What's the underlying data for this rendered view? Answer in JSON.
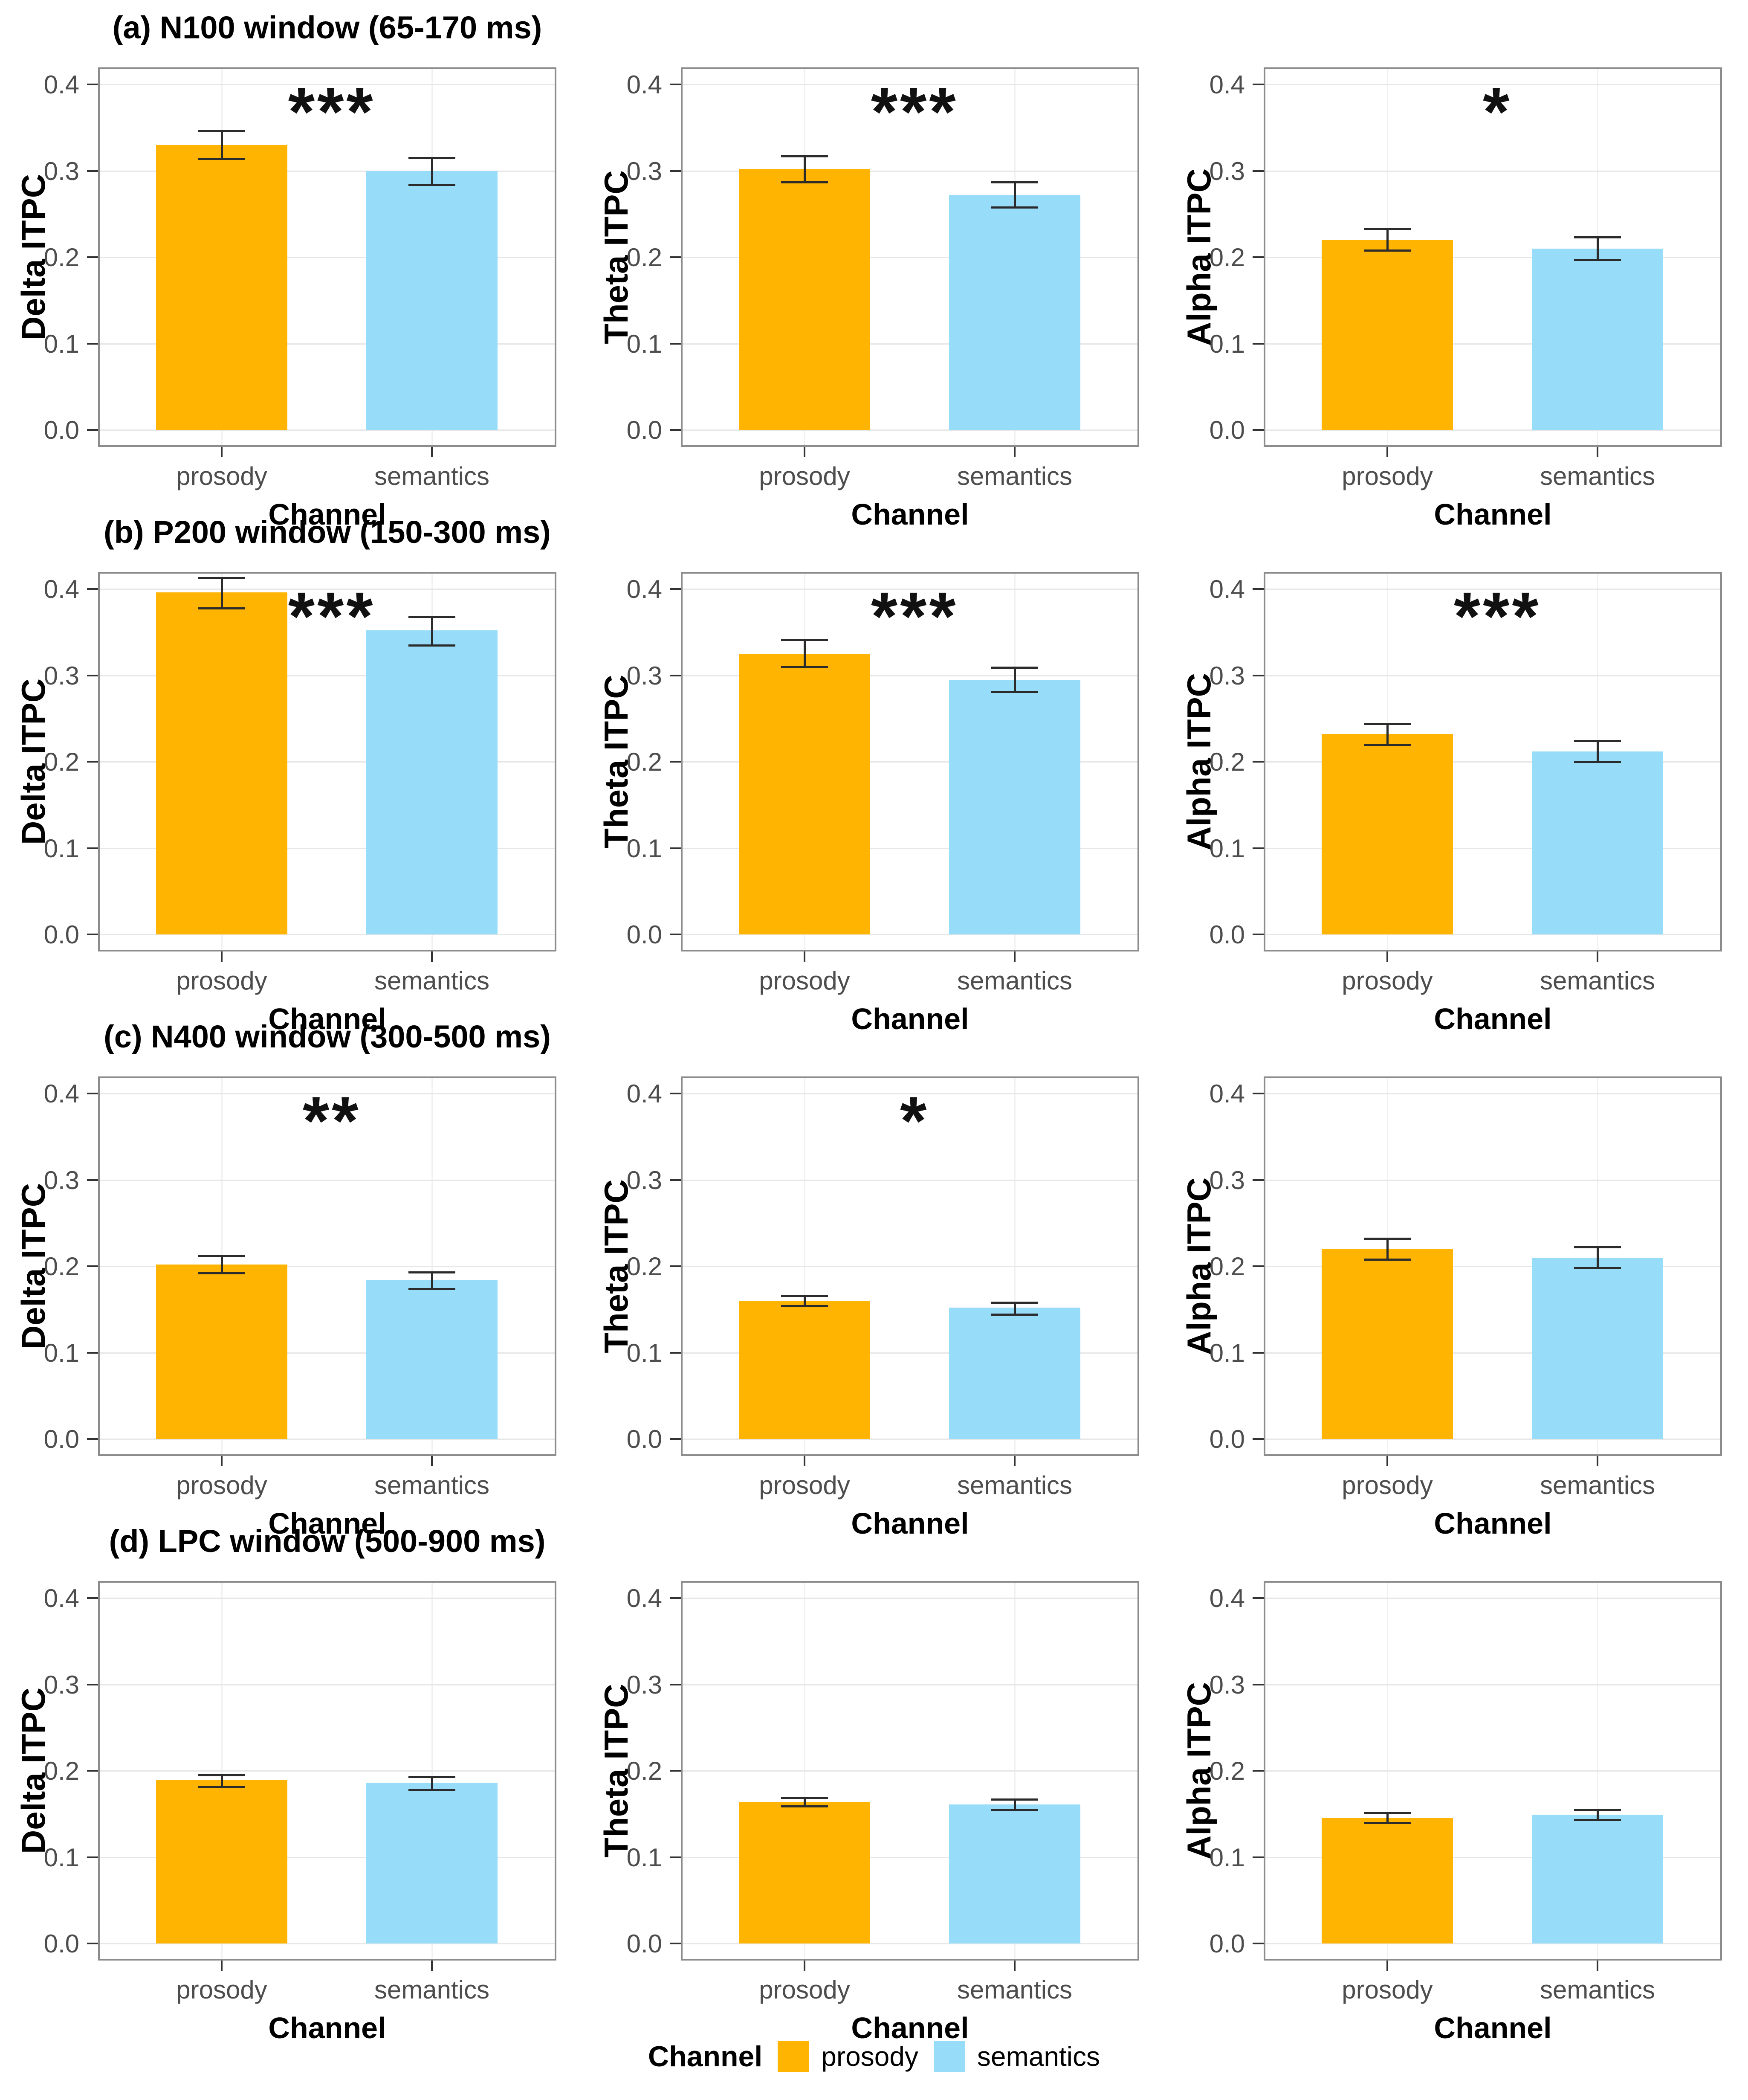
{
  "figure": {
    "legend": {
      "title": "Channel",
      "items": [
        {
          "label": "prosody",
          "color": "#FFB402"
        },
        {
          "label": "semantics",
          "color": "#97DCF8"
        }
      ]
    },
    "colors": {
      "prosody_bar": "#FFB402",
      "semantics_bar": "#97DCF8",
      "grid_horizontal": "#E7E7E7",
      "grid_vertical": "#F1F1F1",
      "panel_border": "#8C8C8C",
      "axis_tick": "#333333",
      "tick_label": "#4D4D4D",
      "error_bar": "#2B2B2B",
      "text": "#000000"
    }
  },
  "axes": {
    "xlabel": "Channel",
    "categories": [
      "prosody",
      "semantics"
    ],
    "ylim": [
      0,
      0.4
    ],
    "y_ticks": [
      0.0,
      0.1,
      0.2,
      0.3,
      0.4
    ],
    "grid": true,
    "legend_position": "bottom"
  },
  "chart_data": [
    {
      "row": 0,
      "col": 0,
      "type": "bar",
      "title": "(a) N100 window (65-170 ms)",
      "ylabel": "Delta ITPC",
      "xlabel": "Channel",
      "categories": [
        "prosody",
        "semantics"
      ],
      "values": [
        0.33,
        0.3
      ],
      "error_low": [
        0.314,
        0.284
      ],
      "error_high": [
        0.346,
        0.315
      ],
      "significance": "***",
      "ylim": [
        0,
        0.4
      ]
    },
    {
      "row": 0,
      "col": 1,
      "type": "bar",
      "title": "",
      "ylabel": "Theta ITPC",
      "xlabel": "Channel",
      "categories": [
        "prosody",
        "semantics"
      ],
      "values": [
        0.302,
        0.272
      ],
      "error_low": [
        0.287,
        0.258
      ],
      "error_high": [
        0.317,
        0.287
      ],
      "significance": "***",
      "ylim": [
        0,
        0.4
      ]
    },
    {
      "row": 0,
      "col": 2,
      "type": "bar",
      "title": "",
      "ylabel": "Alpha ITPC",
      "xlabel": "Channel",
      "categories": [
        "prosody",
        "semantics"
      ],
      "values": [
        0.22,
        0.21
      ],
      "error_low": [
        0.208,
        0.197
      ],
      "error_high": [
        0.233,
        0.223
      ],
      "significance": "*",
      "ylim": [
        0,
        0.4
      ]
    },
    {
      "row": 1,
      "col": 0,
      "type": "bar",
      "title": "(b) P200 window (150-300 ms)",
      "ylabel": "Delta ITPC",
      "xlabel": "Channel",
      "categories": [
        "prosody",
        "semantics"
      ],
      "values": [
        0.396,
        0.352
      ],
      "error_low": [
        0.378,
        0.335
      ],
      "error_high": [
        0.413,
        0.368
      ],
      "significance": "***",
      "ylim": [
        0,
        0.4
      ]
    },
    {
      "row": 1,
      "col": 1,
      "type": "bar",
      "title": "",
      "ylabel": "Theta ITPC",
      "xlabel": "Channel",
      "categories": [
        "prosody",
        "semantics"
      ],
      "values": [
        0.325,
        0.295
      ],
      "error_low": [
        0.31,
        0.281
      ],
      "error_high": [
        0.341,
        0.309
      ],
      "significance": "***",
      "ylim": [
        0,
        0.4
      ]
    },
    {
      "row": 1,
      "col": 2,
      "type": "bar",
      "title": "",
      "ylabel": "Alpha ITPC",
      "xlabel": "Channel",
      "categories": [
        "prosody",
        "semantics"
      ],
      "values": [
        0.232,
        0.212
      ],
      "error_low": [
        0.22,
        0.2
      ],
      "error_high": [
        0.244,
        0.224
      ],
      "significance": "***",
      "ylim": [
        0,
        0.4
      ]
    },
    {
      "row": 2,
      "col": 0,
      "type": "bar",
      "title": "(c) N400 window (300-500 ms)",
      "ylabel": "Delta ITPC",
      "xlabel": "Channel",
      "categories": [
        "prosody",
        "semantics"
      ],
      "values": [
        0.202,
        0.184
      ],
      "error_low": [
        0.192,
        0.174
      ],
      "error_high": [
        0.212,
        0.193
      ],
      "significance": "**",
      "ylim": [
        0,
        0.4
      ]
    },
    {
      "row": 2,
      "col": 1,
      "type": "bar",
      "title": "",
      "ylabel": "Theta ITPC",
      "xlabel": "Channel",
      "categories": [
        "prosody",
        "semantics"
      ],
      "values": [
        0.16,
        0.152
      ],
      "error_low": [
        0.154,
        0.144
      ],
      "error_high": [
        0.166,
        0.158
      ],
      "significance": "*",
      "ylim": [
        0,
        0.4
      ]
    },
    {
      "row": 2,
      "col": 2,
      "type": "bar",
      "title": "",
      "ylabel": "Alpha ITPC",
      "xlabel": "Channel",
      "categories": [
        "prosody",
        "semantics"
      ],
      "values": [
        0.22,
        0.21
      ],
      "error_low": [
        0.208,
        0.198
      ],
      "error_high": [
        0.232,
        0.222
      ],
      "significance": "",
      "ylim": [
        0,
        0.4
      ]
    },
    {
      "row": 3,
      "col": 0,
      "type": "bar",
      "title": "(d) LPC window (500-900 ms)",
      "ylabel": "Delta ITPC",
      "xlabel": "Channel",
      "categories": [
        "prosody",
        "semantics"
      ],
      "values": [
        0.189,
        0.186
      ],
      "error_low": [
        0.181,
        0.178
      ],
      "error_high": [
        0.195,
        0.193
      ],
      "significance": "",
      "ylim": [
        0,
        0.4
      ]
    },
    {
      "row": 3,
      "col": 1,
      "type": "bar",
      "title": "",
      "ylabel": "Theta ITPC",
      "xlabel": "Channel",
      "categories": [
        "prosody",
        "semantics"
      ],
      "values": [
        0.164,
        0.161
      ],
      "error_low": [
        0.159,
        0.155
      ],
      "error_high": [
        0.169,
        0.167
      ],
      "significance": "",
      "ylim": [
        0,
        0.4
      ]
    },
    {
      "row": 3,
      "col": 2,
      "type": "bar",
      "title": "",
      "ylabel": "Alpha ITPC",
      "xlabel": "Channel",
      "categories": [
        "prosody",
        "semantics"
      ],
      "values": [
        0.145,
        0.149
      ],
      "error_low": [
        0.14,
        0.143
      ],
      "error_high": [
        0.151,
        0.155
      ],
      "significance": "",
      "ylim": [
        0,
        0.4
      ]
    }
  ]
}
